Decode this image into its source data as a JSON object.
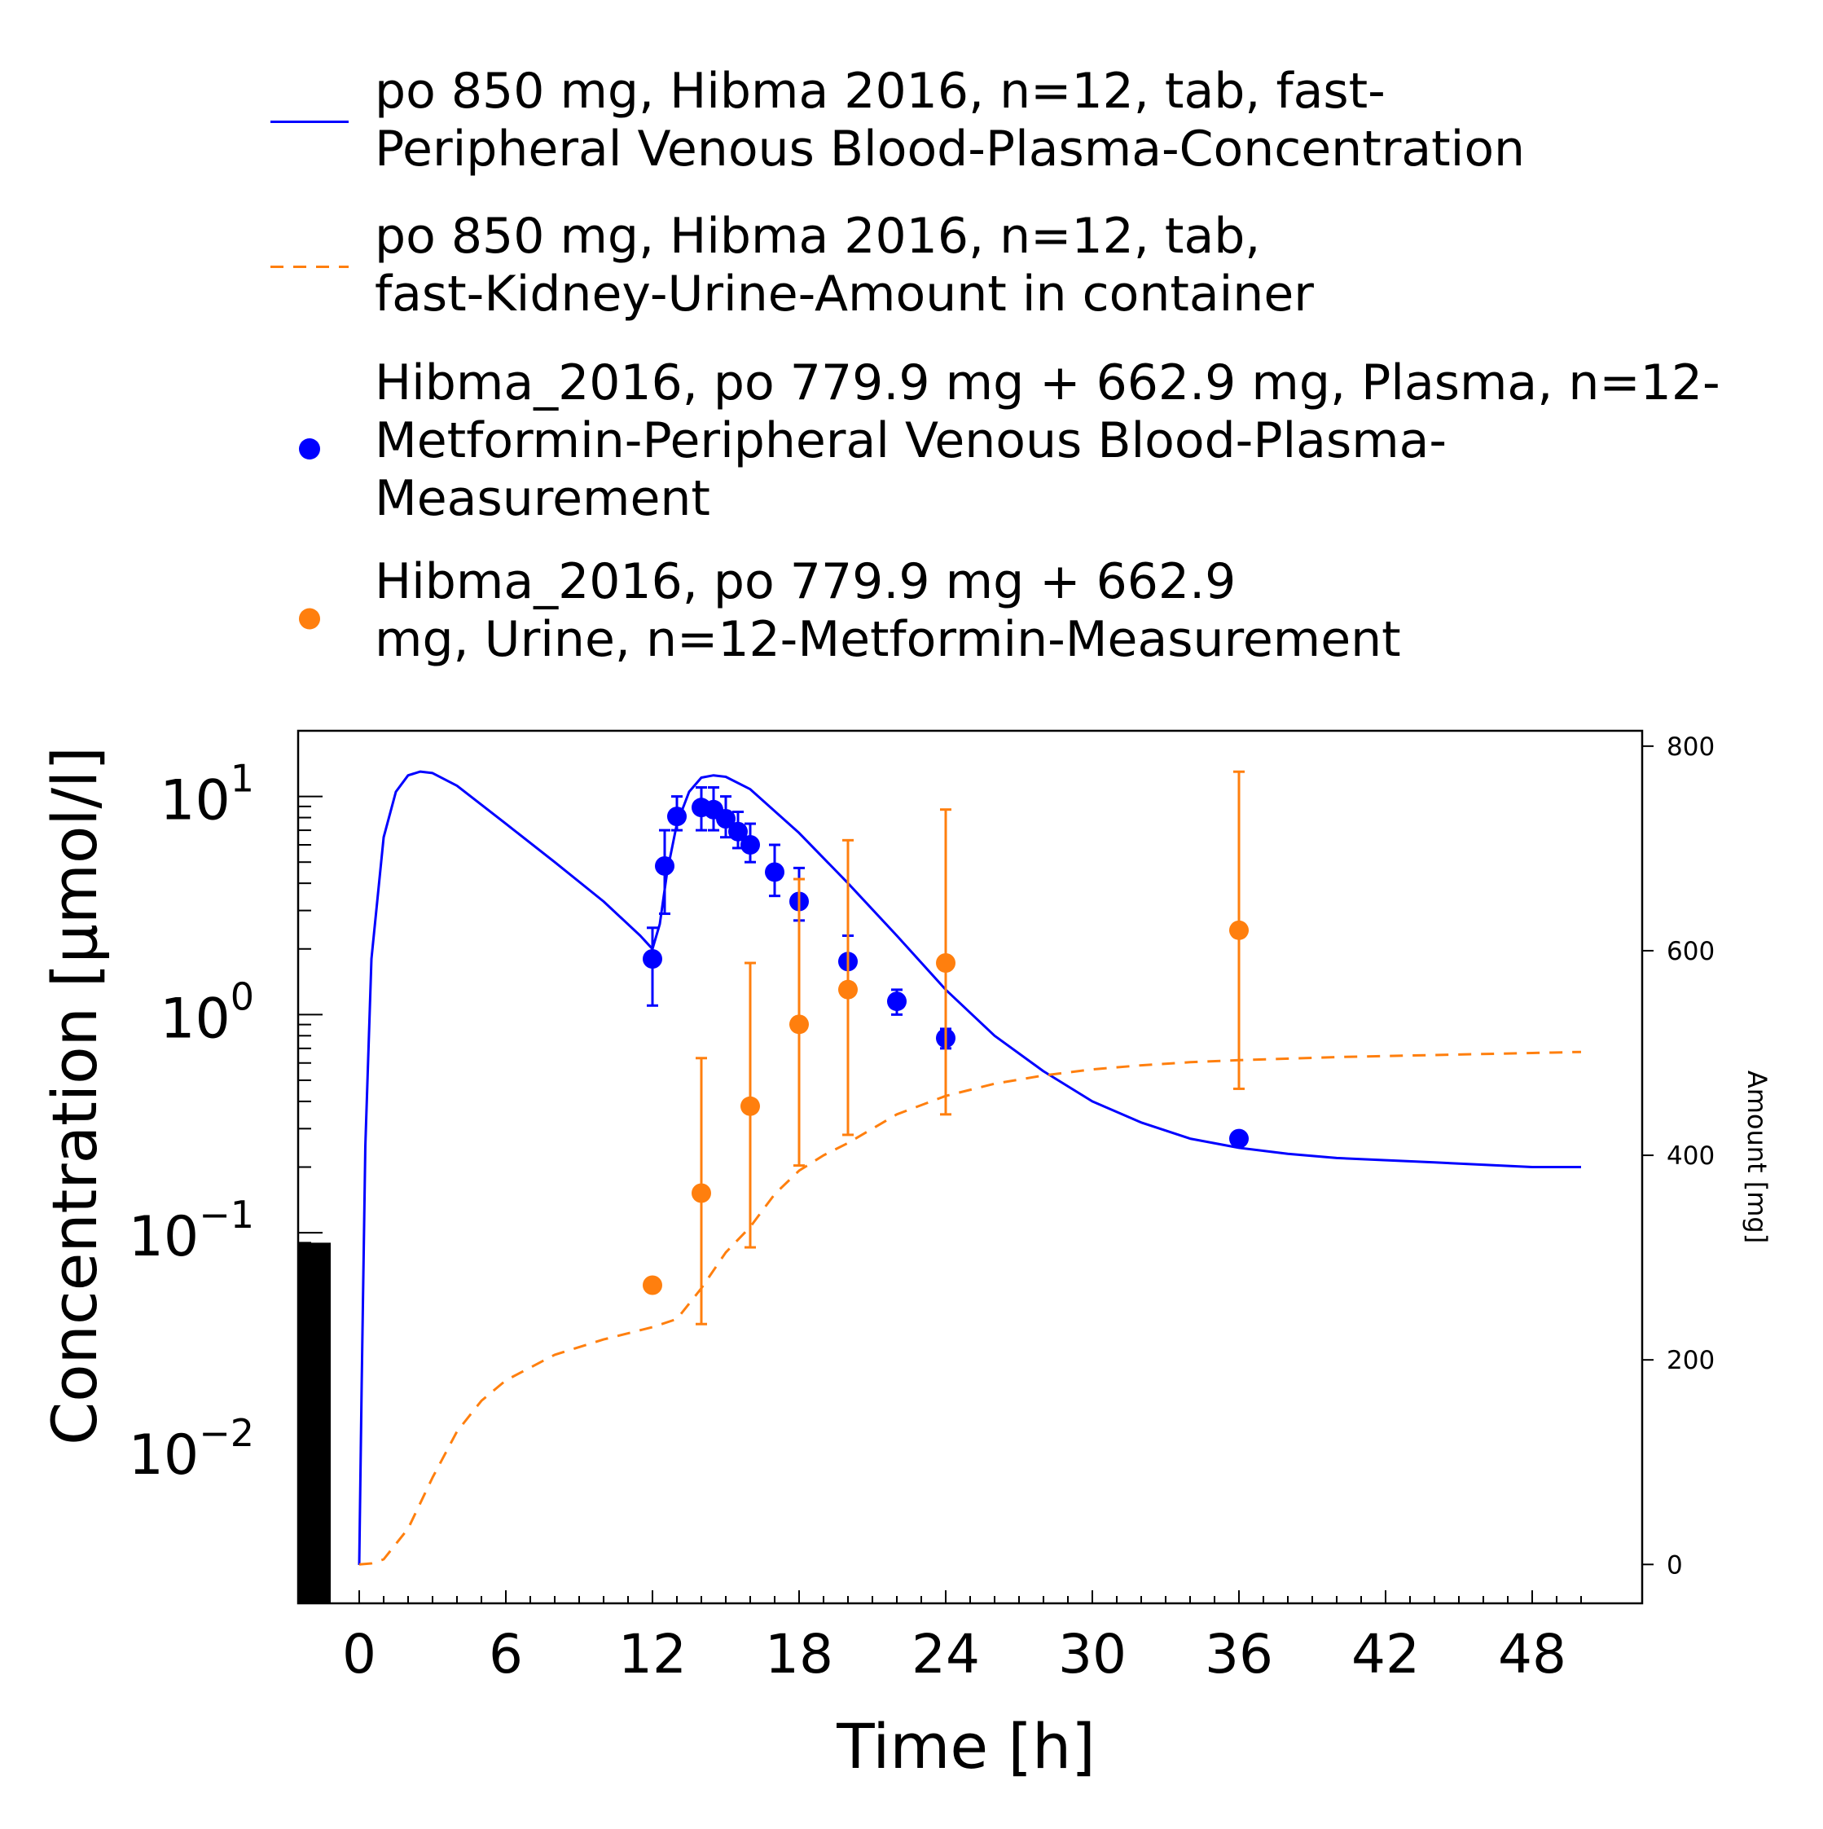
{
  "chart_data": {
    "type": "line",
    "xlabel": "Time [h]",
    "ylabel": "Concentration [µmol/l]",
    "y2label": "Amount [mg]",
    "xlim": [
      -2.5,
      52.5
    ],
    "ylim": [
      0.002,
      20
    ],
    "y_scale": "log",
    "y2lim": [
      -38,
      815
    ],
    "grid": false,
    "legend_position": "top, above plot",
    "x_ticks": [
      0,
      6,
      12,
      18,
      24,
      30,
      36,
      42,
      48
    ],
    "y_ticks": [
      {
        "value": 0.01,
        "base": "10",
        "exp": "−2"
      },
      {
        "value": 0.1,
        "base": "10",
        "exp": "−1"
      },
      {
        "value": 1,
        "base": "10",
        "exp": "0"
      },
      {
        "value": 10,
        "base": "10",
        "exp": "1"
      }
    ],
    "y2_ticks": [
      0,
      200,
      400,
      600,
      800
    ],
    "dosing_bar": {
      "x0": -2.5,
      "x1": -1.2,
      "y_top": 0.09,
      "color": "#000000"
    },
    "series": [
      {
        "name": "po 850 mg, Hibma 2016, n=12, tab, fast-Peripheral Venous Blood-Plasma-Concentration",
        "legend_lines": [
          "po 850 mg, Hibma 2016, n=12, tab, fast-",
          "Peripheral Venous Blood-Plasma-Concentration"
        ],
        "kind": "line",
        "style": "solid",
        "axis": "y",
        "color": "#0000ff",
        "x": [
          0,
          0.1,
          0.25,
          0.5,
          1,
          1.5,
          2,
          2.5,
          3,
          4,
          6,
          8,
          10,
          11.5,
          12,
          12.3,
          12.6,
          13,
          13.5,
          14,
          14.5,
          15,
          16,
          18,
          20,
          22,
          24,
          26,
          28,
          30,
          32,
          34,
          36,
          38,
          40,
          44,
          48,
          50
        ],
        "y": [
          0.003,
          0.02,
          0.25,
          1.8,
          6.5,
          10.5,
          12.5,
          13,
          12.8,
          11.2,
          7.5,
          5.0,
          3.3,
          2.3,
          2.0,
          2.6,
          4.5,
          7.5,
          10.5,
          12.2,
          12.5,
          12.3,
          10.8,
          6.8,
          4.0,
          2.3,
          1.3,
          0.8,
          0.55,
          0.4,
          0.32,
          0.27,
          0.245,
          0.23,
          0.22,
          0.21,
          0.2,
          0.2
        ]
      },
      {
        "name": "po 850 mg, Hibma 2016, n=12, tab, fast-Kidney-Urine-Amount in container",
        "legend_lines": [
          "po 850 mg, Hibma 2016, n=12, tab,",
          "fast-Kidney-Urine-Amount in container"
        ],
        "kind": "line",
        "style": "dashed",
        "axis": "y2",
        "color": "#ff7f0e",
        "x": [
          0,
          0.5,
          1,
          2,
          3,
          4,
          5,
          6,
          8,
          10,
          12,
          13,
          14,
          15,
          16,
          17,
          18,
          19,
          20,
          22,
          24,
          26,
          28,
          30,
          32,
          34,
          36,
          40,
          44,
          48,
          50
        ],
        "y": [
          0,
          1,
          5,
          35,
          85,
          130,
          160,
          180,
          205,
          220,
          232,
          240,
          270,
          305,
          330,
          362,
          385,
          400,
          412,
          440,
          458,
          470,
          478,
          484,
          488,
          491,
          493,
          496,
          498,
          500,
          501
        ]
      },
      {
        "name": "Hibma_2016, po 779.9 mg + 662.9 mg, Plasma, n=12-Metformin-Peripheral Venous Blood-Plasma-Measurement",
        "legend_lines": [
          "Hibma_2016, po 779.9 mg + 662.9 mg, Plasma, n=12-",
          "Metformin-Peripheral Venous Blood-Plasma-",
          "Measurement"
        ],
        "kind": "scatter",
        "axis": "y",
        "color": "#0000ff",
        "x": [
          12,
          12.5,
          13,
          14,
          14.5,
          15,
          15.5,
          16,
          17,
          18,
          20,
          22,
          24,
          36
        ],
        "y": [
          1.8,
          4.8,
          8.1,
          8.9,
          8.7,
          7.9,
          6.9,
          6.0,
          4.5,
          3.3,
          1.75,
          1.15,
          0.78,
          0.27
        ],
        "err_low": [
          1.1,
          2.9,
          7.0,
          7.0,
          7.0,
          6.5,
          5.8,
          5.0,
          3.5,
          2.7,
          1.4,
          1.0,
          0.7,
          0.26
        ],
        "err_high": [
          2.5,
          7.0,
          10.0,
          11.0,
          11.0,
          10.0,
          8.5,
          7.5,
          6.0,
          4.7,
          2.3,
          1.3,
          0.86,
          0.29
        ]
      },
      {
        "name": "Hibma_2016, po 779.9 mg + 662.9 mg, Urine, n=12-Metformin-Measurement",
        "legend_lines": [
          "Hibma_2016, po 779.9 mg + 662.9",
          "mg, Urine, n=12-Metformin-Measurement"
        ],
        "kind": "scatter",
        "axis": "y2",
        "color": "#ff7f0e",
        "x": [
          12,
          14,
          16,
          18,
          20,
          24,
          36
        ],
        "y": [
          273,
          363,
          448,
          528,
          562,
          588,
          620
        ],
        "err_low": [
          273,
          235,
          310,
          390,
          420,
          440,
          465
        ],
        "err_high": [
          273,
          495,
          588,
          670,
          708,
          738,
          775
        ]
      }
    ]
  }
}
